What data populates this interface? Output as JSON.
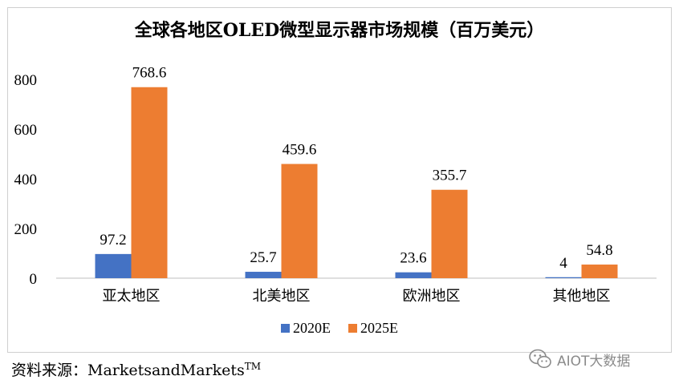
{
  "chart_data": {
    "type": "bar",
    "title": "全球各地区OLED微型显示器市场规模（百万美元）",
    "categories": [
      "亚太地区",
      "北美地区",
      "欧洲地区",
      "其他地区"
    ],
    "series": [
      {
        "name": "2020E",
        "color": "#4472C4",
        "values": [
          97.2,
          25.7,
          23.6,
          4
        ]
      },
      {
        "name": "2025E",
        "color": "#ED7D31",
        "values": [
          768.6,
          459.6,
          355.7,
          54.8
        ]
      }
    ],
    "data_labels": [
      [
        "97.2",
        "25.7",
        "23.6",
        "4"
      ],
      [
        "768.6",
        "459.6",
        "355.7",
        "54.8"
      ]
    ],
    "ylim": [
      0,
      800
    ],
    "yticks": [
      0,
      200,
      400,
      600,
      800
    ],
    "xlabel": "",
    "ylabel": "",
    "grid": false,
    "legend_position": "bottom"
  },
  "source": {
    "prefix": "资料来源：",
    "name": "MarketsandMarkets",
    "mark": "TM"
  },
  "watermark": {
    "text": "AIOT大数据",
    "icon": "wechat-icon"
  }
}
